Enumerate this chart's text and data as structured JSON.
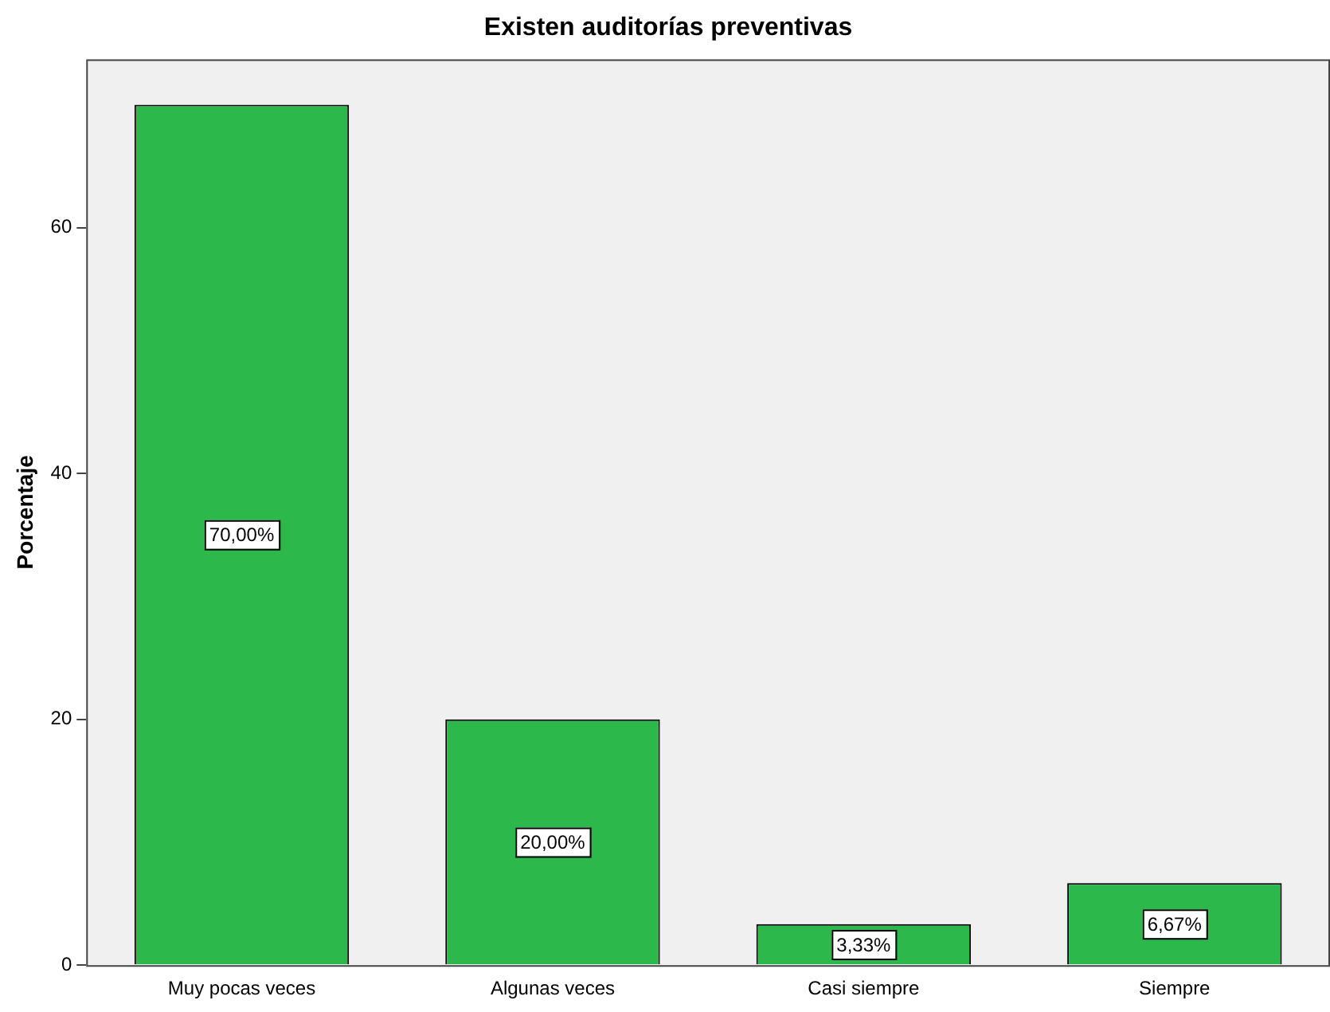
{
  "chart_data": {
    "type": "bar",
    "title": "Existen auditorías preventivas",
    "ylabel": "Porcentaje",
    "categories": [
      "Muy pocas veces",
      "Algunas veces",
      "Casi siempre",
      "Siempre"
    ],
    "values": [
      70,
      20,
      3.33,
      6.67
    ],
    "value_labels": [
      "70,00%",
      "20,00%",
      "3,33%",
      "6,67%"
    ],
    "color": "#2db84b",
    "ylim": [
      0,
      73.7
    ],
    "yticks": [
      0,
      20,
      40,
      60
    ],
    "grid": false,
    "legend": false
  }
}
